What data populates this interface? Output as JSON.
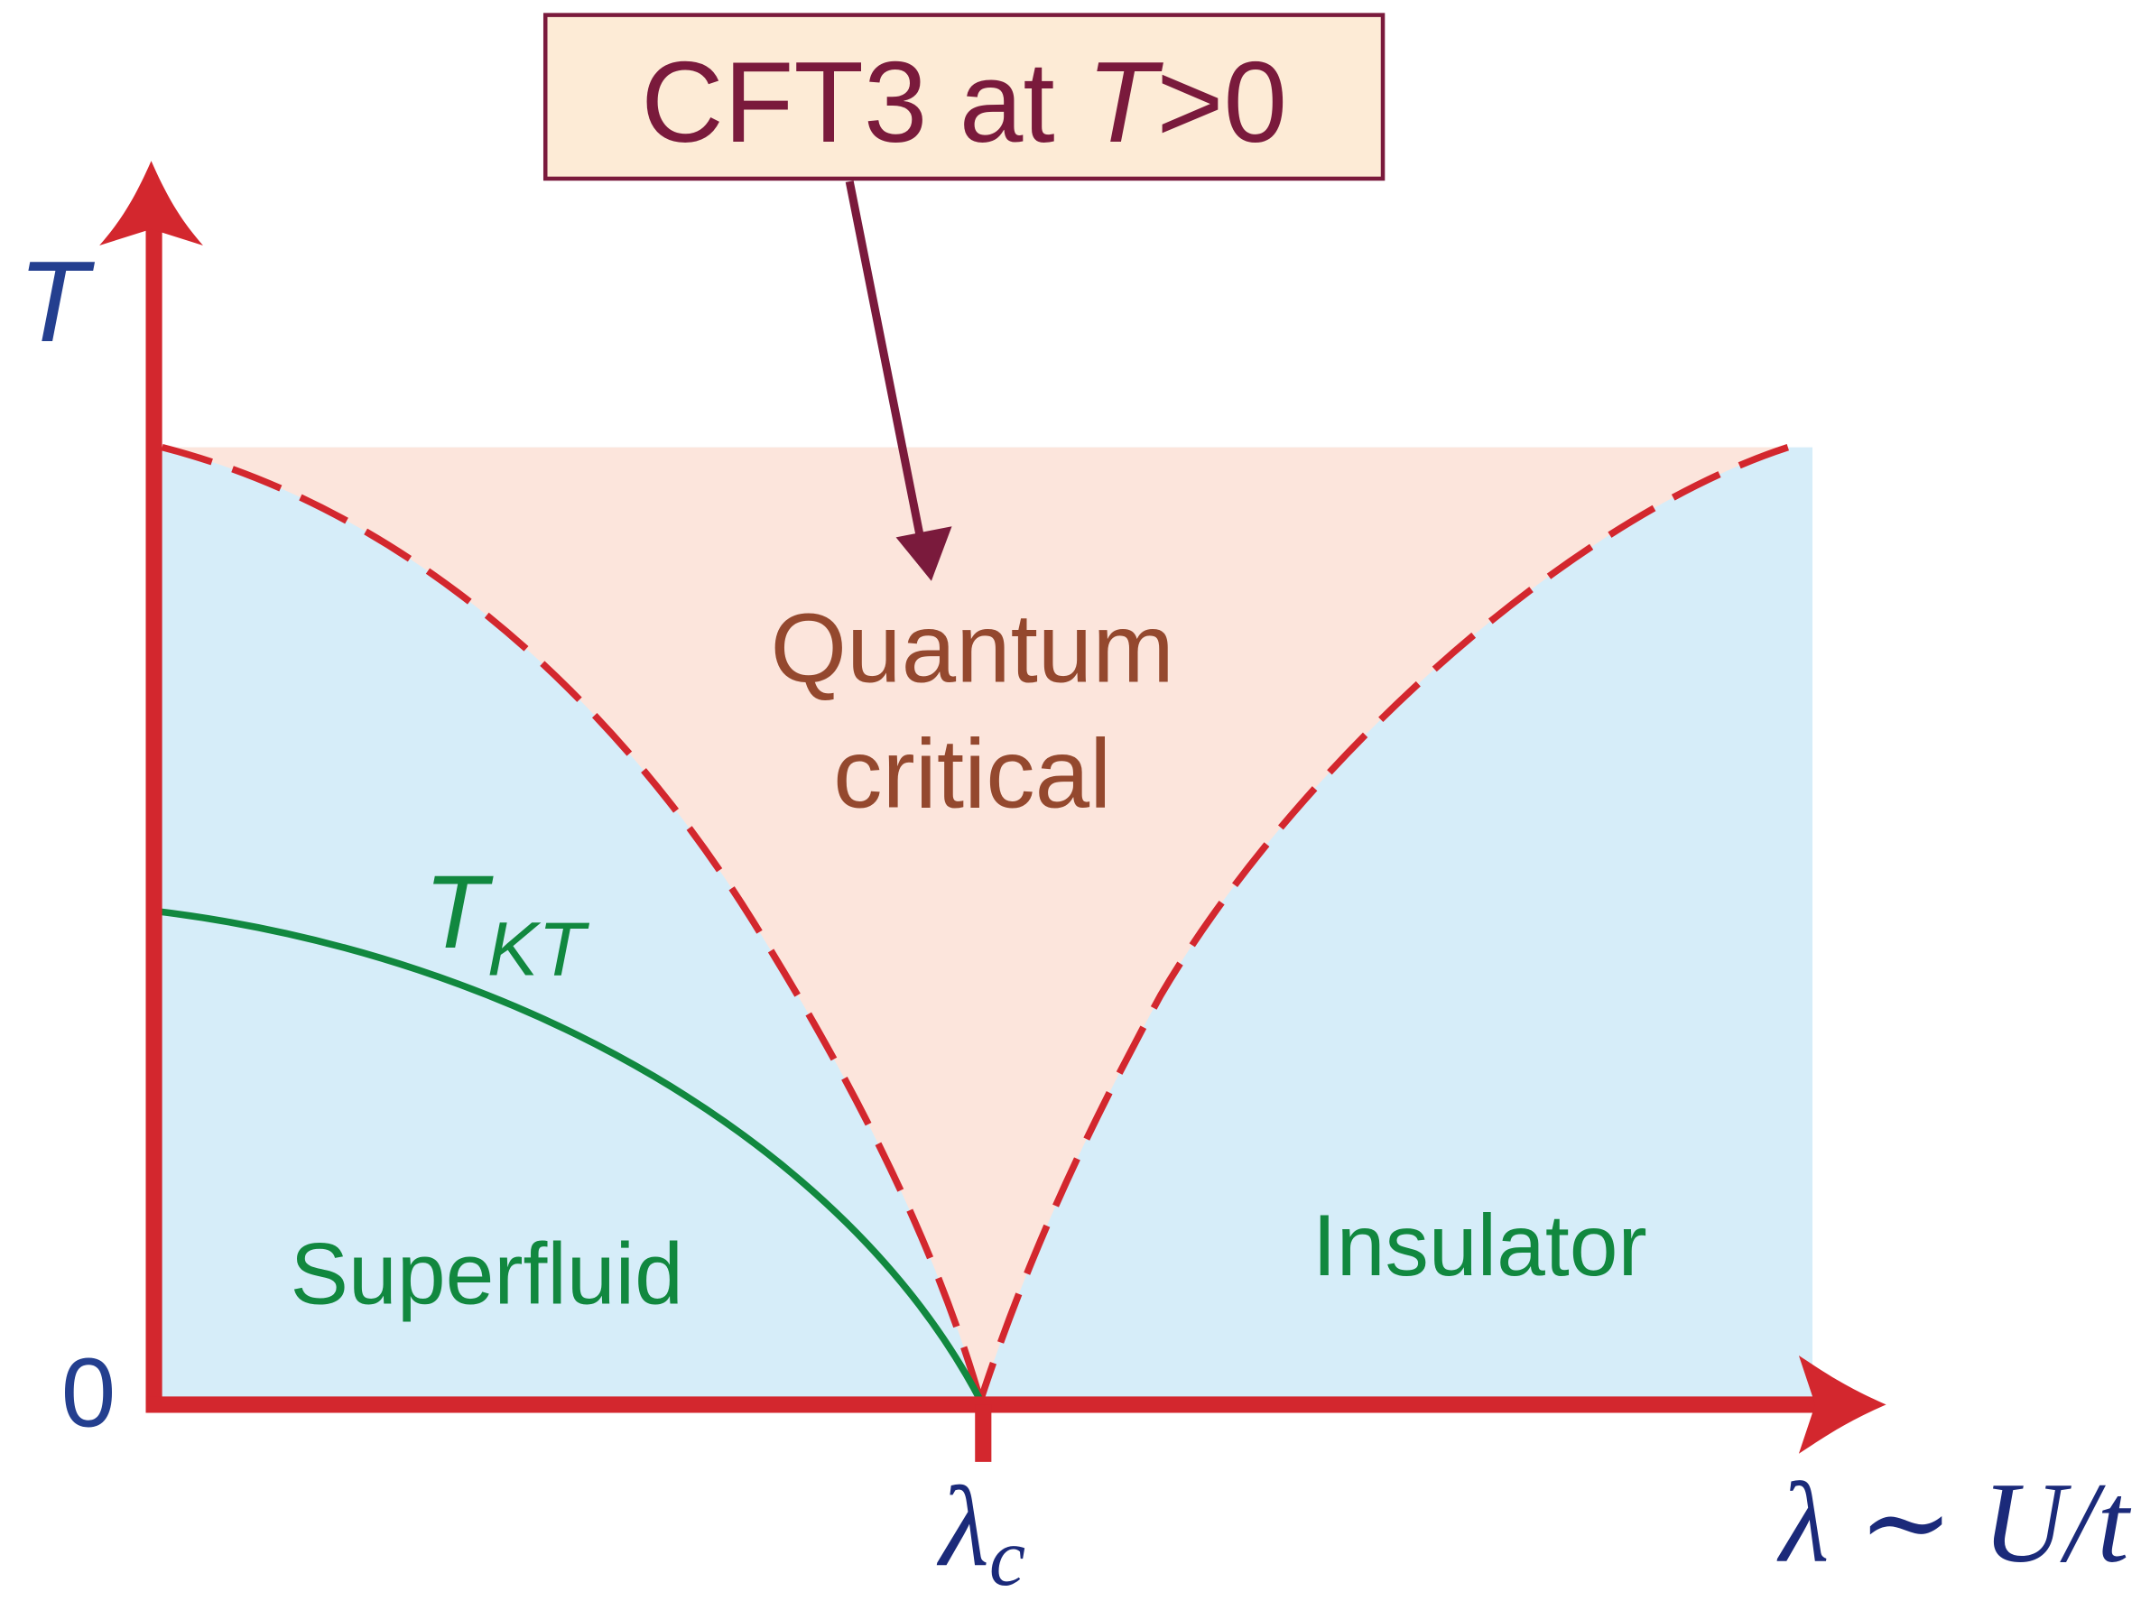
{
  "annotation": {
    "text": "CFT3 at ",
    "italic": "T",
    "suffix": ">0"
  },
  "axes": {
    "y_label": "T",
    "origin": "0",
    "x_label": "λ ∼ U/t",
    "critical_point": {
      "symbol": "λ",
      "subscript": "c"
    }
  },
  "regions": {
    "quantum_critical": [
      "Quantum",
      "critical"
    ],
    "superfluid": "Superfluid",
    "insulator": "Insulator"
  },
  "curve_label": {
    "symbol": "T",
    "subscript": "KT"
  }
}
